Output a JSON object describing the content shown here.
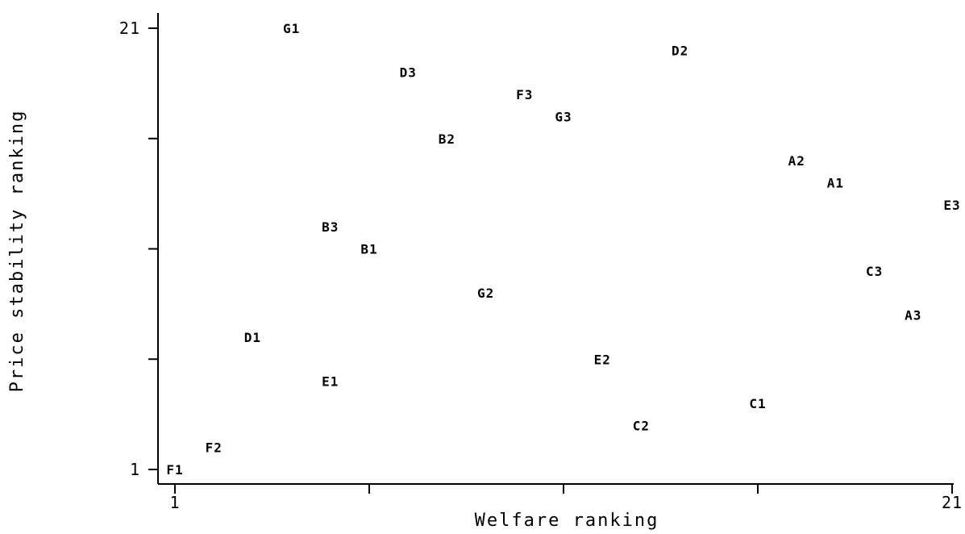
{
  "chart_data": {
    "type": "scatter",
    "title": "",
    "xlabel": "Welfare ranking",
    "ylabel": "Price stability ranking",
    "xlim": [
      1,
      21
    ],
    "ylim": [
      1,
      21
    ],
    "x_tick_values": [
      1,
      6,
      11,
      16,
      21
    ],
    "x_tick_labels": [
      "1",
      "",
      "",
      "",
      "21"
    ],
    "y_tick_values": [
      1,
      6,
      11,
      16,
      21
    ],
    "y_tick_labels": [
      "1",
      "",
      "",
      "",
      "21"
    ],
    "grid": false,
    "marker_style": "text-labels",
    "points": [
      {
        "label": "F1",
        "x": 1,
        "y": 1
      },
      {
        "label": "F2",
        "x": 2,
        "y": 2
      },
      {
        "label": "D1",
        "x": 3,
        "y": 7
      },
      {
        "label": "G1",
        "x": 4,
        "y": 21
      },
      {
        "label": "E1",
        "x": 5,
        "y": 5
      },
      {
        "label": "B3",
        "x": 5,
        "y": 12
      },
      {
        "label": "B1",
        "x": 6,
        "y": 11
      },
      {
        "label": "D3",
        "x": 7,
        "y": 19
      },
      {
        "label": "B2",
        "x": 8,
        "y": 16
      },
      {
        "label": "G2",
        "x": 9,
        "y": 9
      },
      {
        "label": "F3",
        "x": 10,
        "y": 18
      },
      {
        "label": "G3",
        "x": 11,
        "y": 17
      },
      {
        "label": "E2",
        "x": 12,
        "y": 6
      },
      {
        "label": "C2",
        "x": 13,
        "y": 3
      },
      {
        "label": "D2",
        "x": 14,
        "y": 20
      },
      {
        "label": "C1",
        "x": 16,
        "y": 4
      },
      {
        "label": "A2",
        "x": 17,
        "y": 15
      },
      {
        "label": "A1",
        "x": 18,
        "y": 14
      },
      {
        "label": "C3",
        "x": 19,
        "y": 10
      },
      {
        "label": "A3",
        "x": 20,
        "y": 8
      },
      {
        "label": "E3",
        "x": 21,
        "y": 13
      }
    ]
  }
}
